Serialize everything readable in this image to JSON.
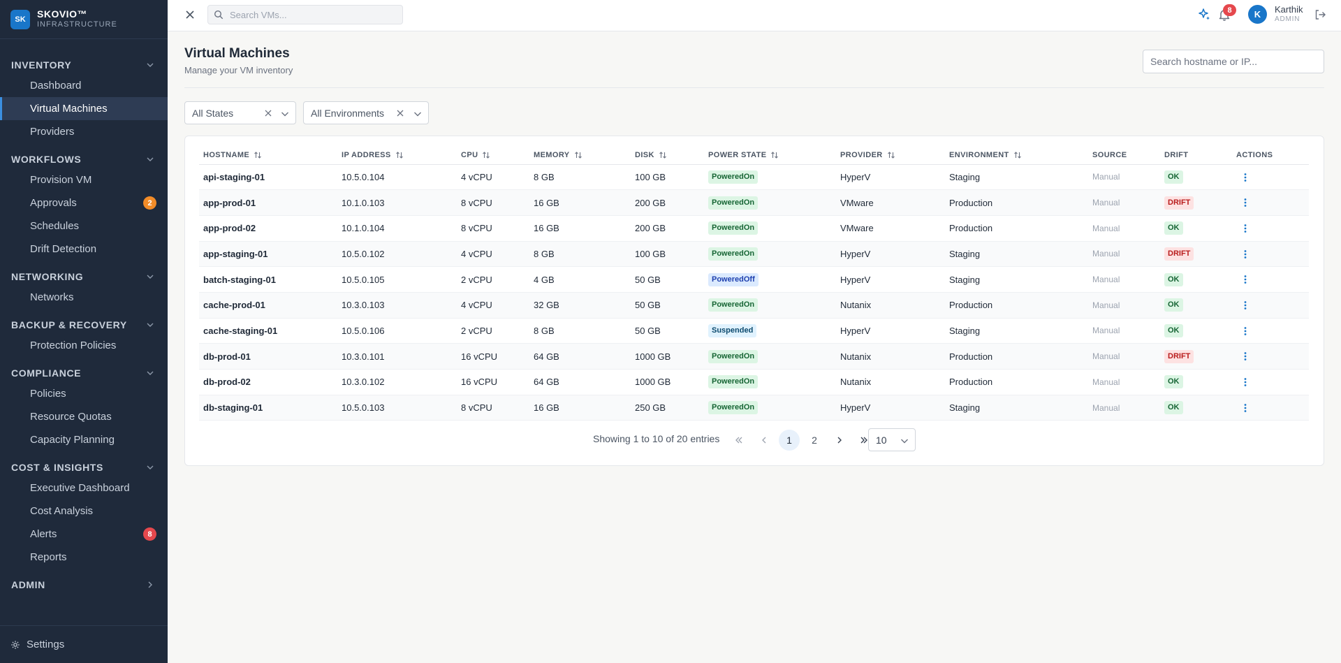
{
  "brand": {
    "logo": "SK",
    "name": "SKOVIO™",
    "sub": "INFRASTRUCTURE"
  },
  "sidebar": {
    "sections": [
      {
        "title": "INVENTORY",
        "items": [
          {
            "label": "Dashboard"
          },
          {
            "label": "Virtual Machines",
            "active": true
          },
          {
            "label": "Providers"
          }
        ]
      },
      {
        "title": "WORKFLOWS",
        "items": [
          {
            "label": "Provision VM"
          },
          {
            "label": "Approvals",
            "badge": "2"
          },
          {
            "label": "Schedules"
          },
          {
            "label": "Drift Detection"
          }
        ]
      },
      {
        "title": "NETWORKING",
        "items": [
          {
            "label": "Networks"
          }
        ]
      },
      {
        "title": "BACKUP & RECOVERY",
        "items": [
          {
            "label": "Protection Policies"
          }
        ]
      },
      {
        "title": "COMPLIANCE",
        "items": [
          {
            "label": "Policies"
          },
          {
            "label": "Resource Quotas"
          },
          {
            "label": "Capacity Planning"
          }
        ]
      },
      {
        "title": "COST & INSIGHTS",
        "items": [
          {
            "label": "Executive Dashboard"
          },
          {
            "label": "Cost Analysis"
          },
          {
            "label": "Alerts",
            "badge": "8"
          },
          {
            "label": "Reports"
          }
        ]
      },
      {
        "title": "ADMIN",
        "items": []
      }
    ],
    "settings_label": "Settings"
  },
  "topbar": {
    "search_placeholder": "Search VMs...",
    "notification_count": "8",
    "user": {
      "initial": "K",
      "name": "Karthik",
      "role": "ADMIN"
    }
  },
  "page": {
    "title": "Virtual Machines",
    "subtitle": "Manage your VM inventory",
    "host_search_placeholder": "Search hostname or IP...",
    "filters": {
      "state": "All States",
      "environment": "All Environments"
    }
  },
  "table": {
    "columns": [
      "HOSTNAME",
      "IP ADDRESS",
      "CPU",
      "MEMORY",
      "DISK",
      "POWER STATE",
      "PROVIDER",
      "ENVIRONMENT",
      "SOURCE",
      "DRIFT",
      "ACTIONS"
    ],
    "rows": [
      {
        "hostname": "api-staging-01",
        "ip": "10.5.0.104",
        "cpu": "4 vCPU",
        "memory": "8 GB",
        "disk": "100 GB",
        "power": "PoweredOn",
        "provider": "HyperV",
        "environment": "Staging",
        "source": "Manual",
        "drift": "OK"
      },
      {
        "hostname": "app-prod-01",
        "ip": "10.1.0.103",
        "cpu": "8 vCPU",
        "memory": "16 GB",
        "disk": "200 GB",
        "power": "PoweredOn",
        "provider": "VMware",
        "environment": "Production",
        "source": "Manual",
        "drift": "DRIFT"
      },
      {
        "hostname": "app-prod-02",
        "ip": "10.1.0.104",
        "cpu": "8 vCPU",
        "memory": "16 GB",
        "disk": "200 GB",
        "power": "PoweredOn",
        "provider": "VMware",
        "environment": "Production",
        "source": "Manual",
        "drift": "OK"
      },
      {
        "hostname": "app-staging-01",
        "ip": "10.5.0.102",
        "cpu": "4 vCPU",
        "memory": "8 GB",
        "disk": "100 GB",
        "power": "PoweredOn",
        "provider": "HyperV",
        "environment": "Staging",
        "source": "Manual",
        "drift": "DRIFT"
      },
      {
        "hostname": "batch-staging-01",
        "ip": "10.5.0.105",
        "cpu": "2 vCPU",
        "memory": "4 GB",
        "disk": "50 GB",
        "power": "PoweredOff",
        "provider": "HyperV",
        "environment": "Staging",
        "source": "Manual",
        "drift": "OK"
      },
      {
        "hostname": "cache-prod-01",
        "ip": "10.3.0.103",
        "cpu": "4 vCPU",
        "memory": "32 GB",
        "disk": "50 GB",
        "power": "PoweredOn",
        "provider": "Nutanix",
        "environment": "Production",
        "source": "Manual",
        "drift": "OK"
      },
      {
        "hostname": "cache-staging-01",
        "ip": "10.5.0.106",
        "cpu": "2 vCPU",
        "memory": "8 GB",
        "disk": "50 GB",
        "power": "Suspended",
        "provider": "HyperV",
        "environment": "Staging",
        "source": "Manual",
        "drift": "OK"
      },
      {
        "hostname": "db-prod-01",
        "ip": "10.3.0.101",
        "cpu": "16 vCPU",
        "memory": "64 GB",
        "disk": "1000 GB",
        "power": "PoweredOn",
        "provider": "Nutanix",
        "environment": "Production",
        "source": "Manual",
        "drift": "DRIFT"
      },
      {
        "hostname": "db-prod-02",
        "ip": "10.3.0.102",
        "cpu": "16 vCPU",
        "memory": "64 GB",
        "disk": "1000 GB",
        "power": "PoweredOn",
        "provider": "Nutanix",
        "environment": "Production",
        "source": "Manual",
        "drift": "OK"
      },
      {
        "hostname": "db-staging-01",
        "ip": "10.5.0.103",
        "cpu": "8 vCPU",
        "memory": "16 GB",
        "disk": "250 GB",
        "power": "PoweredOn",
        "provider": "HyperV",
        "environment": "Staging",
        "source": "Manual",
        "drift": "OK"
      }
    ]
  },
  "pagination": {
    "summary": "Showing 1 to 10 of 20 entries",
    "pages": [
      "1",
      "2"
    ],
    "current": "1",
    "page_size": "10"
  },
  "colors": {
    "sidebar_bg": "#1f2a3b",
    "accent": "#1976c9",
    "badge_red": "#e5484d",
    "badge_orange": "#f28c28"
  }
}
